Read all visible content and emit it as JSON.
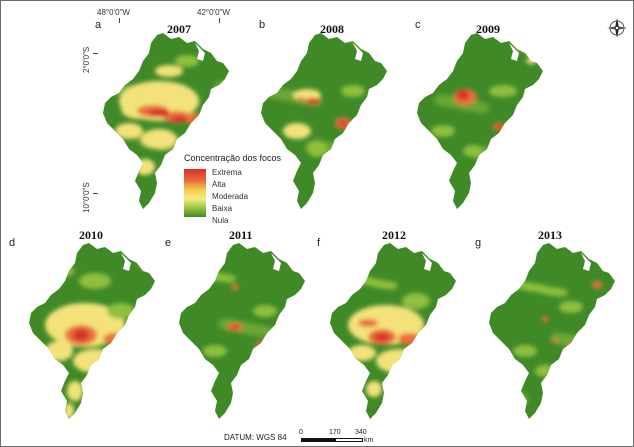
{
  "header": {
    "lon_left": "48°0'0\"W",
    "lon_right": "42°0'0\"W",
    "lat_top": "2°0'0\"S",
    "lat_bottom": "10°0'0\"S"
  },
  "panels": [
    {
      "letter": "a",
      "year": "2007"
    },
    {
      "letter": "b",
      "year": "2008"
    },
    {
      "letter": "c",
      "year": "2009"
    },
    {
      "letter": "d",
      "year": "2010"
    },
    {
      "letter": "e",
      "year": "2011"
    },
    {
      "letter": "f",
      "year": "2012"
    },
    {
      "letter": "g",
      "year": "2013"
    }
  ],
  "legend": {
    "title": "Concentração dos focos",
    "labels": [
      "Extrema",
      "Alta",
      "Moderada",
      "Baixa",
      "Nula"
    ]
  },
  "footer": {
    "datum": "DATUM: WGS 84",
    "scale_ticks": [
      "0",
      "170",
      "340"
    ],
    "scale_unit": "km"
  },
  "compass": {
    "icon": "compass-rose-icon"
  },
  "colors": {
    "nula": "#3f8a27",
    "baixa": "#8fbf3c",
    "moderada": "#f3e27a",
    "alta": "#e9703a",
    "extrema": "#d6302a"
  }
}
